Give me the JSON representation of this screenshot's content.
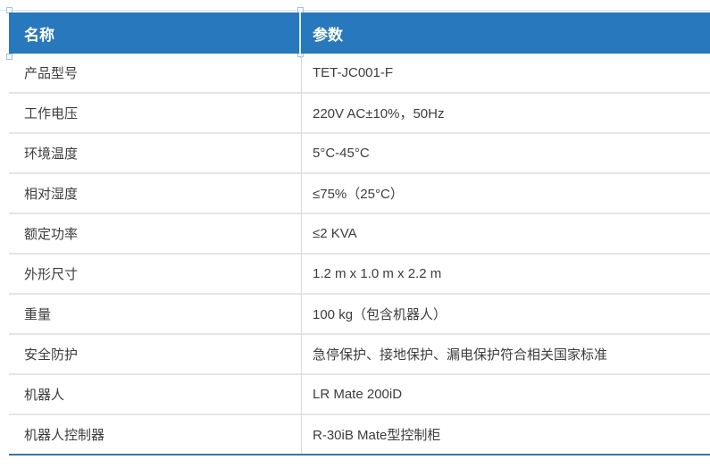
{
  "table": {
    "header": {
      "name_label": "名称",
      "param_label": "参数"
    },
    "rows": [
      {
        "name": "产品型号",
        "value": "TET-JC001-F"
      },
      {
        "name": "工作电压",
        "value": "220V AC±10%，50Hz"
      },
      {
        "name": "环境温度",
        "value": "5°C-45°C"
      },
      {
        "name": "相对湿度",
        "value": "≤75%（25°C）"
      },
      {
        "name": "额定功率",
        "value": "≤2 KVA"
      },
      {
        "name": "外形尺寸",
        "value": "1.2 m x 1.0 m x 2.2 m"
      },
      {
        "name": "重量",
        "value": "100 kg（包含机器人）"
      },
      {
        "name": "安全防护",
        "value": "急停保护、接地保护、漏电保护符合相关国家标准"
      },
      {
        "name": "机器人",
        "value": "LR Mate 200iD"
      },
      {
        "name": "机器人控制器",
        "value": "R-30iB Mate型控制柜"
      }
    ],
    "colors": {
      "header_bg": "#2878BE",
      "header_text": "#FFFFFF",
      "row_divider": "#E5E5E5",
      "column_divider": "#D9D9D9",
      "bottom_border": "#3F72A8",
      "body_text": "#3D3D3D",
      "selection_handle": "#9CC2E5"
    }
  }
}
